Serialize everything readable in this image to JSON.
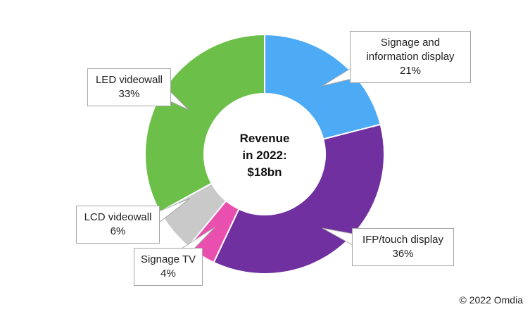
{
  "chart_data": {
    "type": "donut",
    "categories": [
      "Signage and information display",
      "IFP/touch display",
      "Signage TV",
      "LCD videowall",
      "LED videowall"
    ],
    "values": [
      21,
      36,
      4,
      6,
      33
    ],
    "value_labels": [
      "21%",
      "36%",
      "4%",
      "6%",
      "33%"
    ],
    "colors": [
      "#4dabf5",
      "#7030a0",
      "#e94fae",
      "#c9c9c9",
      "#6cc04a"
    ],
    "center_text": [
      "Revenue",
      "in 2022:",
      "$18bn"
    ],
    "source": "© 2022 Omdia"
  }
}
